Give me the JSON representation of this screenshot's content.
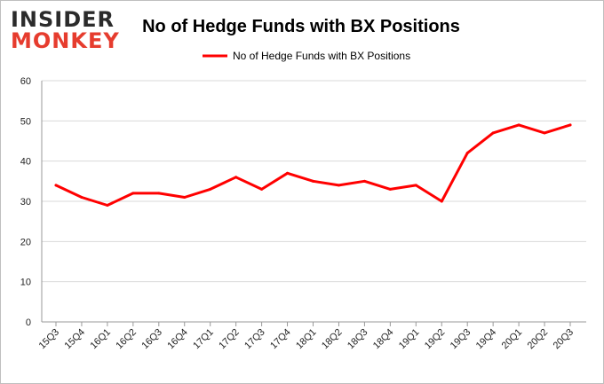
{
  "logo": {
    "line1": "INSIDER",
    "line2": "MONKEY",
    "colors": {
      "line1": "#2b2b2b",
      "line2": "#e63c2e"
    }
  },
  "colors": {
    "series": "#ff0000",
    "grid": "#d9d9d9",
    "axis": "#999999",
    "border": "#bfbfbf"
  },
  "chart_data": {
    "type": "line",
    "title": "No of Hedge Funds with BX Positions",
    "legend": {
      "position": "top-center"
    },
    "grid": true,
    "ylim": [
      0,
      60
    ],
    "yticks": [
      0,
      10,
      20,
      30,
      40,
      50,
      60
    ],
    "categories": [
      "15Q3",
      "15Q4",
      "16Q1",
      "16Q2",
      "16Q3",
      "16Q4",
      "17Q1",
      "17Q2",
      "17Q3",
      "17Q4",
      "18Q1",
      "18Q2",
      "18Q3",
      "18Q4",
      "19Q1",
      "19Q2",
      "19Q3",
      "19Q4",
      "20Q1",
      "20Q2",
      "20Q3"
    ],
    "series": [
      {
        "name": "No of Hedge Funds with BX Positions",
        "values": [
          34,
          31,
          29,
          32,
          32,
          31,
          33,
          36,
          33,
          37,
          35,
          34,
          35,
          33,
          34,
          30,
          42,
          47,
          49,
          47,
          49
        ]
      }
    ]
  }
}
